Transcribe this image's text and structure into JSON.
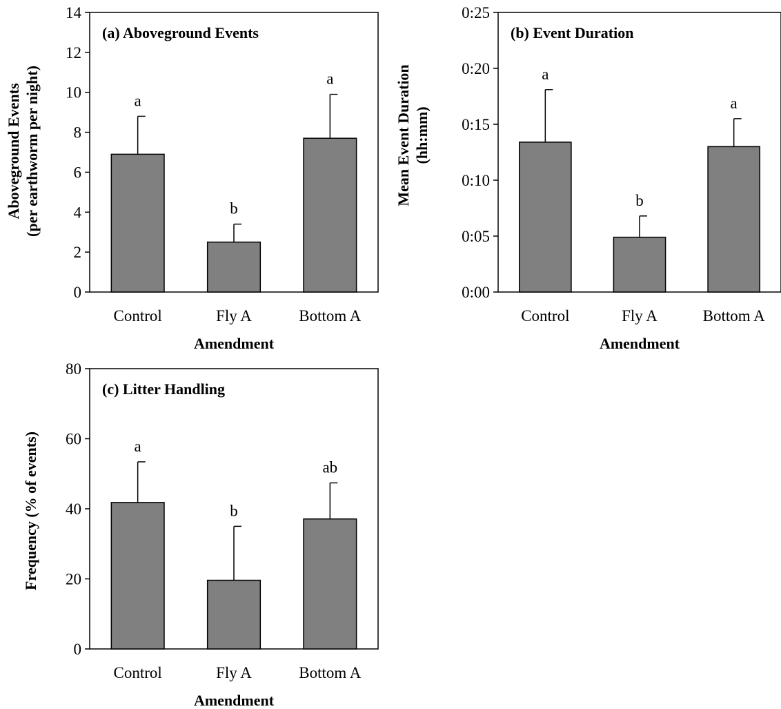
{
  "figure": {
    "colors": {
      "bar_fill": "#808080",
      "bar_stroke": "#000000",
      "axis": "#000000"
    }
  },
  "chart_data": [
    {
      "type": "bar",
      "title": "(a) Aboveground Events",
      "xlabel": "Amendment",
      "ylabel": "Aboveground Events",
      "ylabel_sub": "(per earthworm per night)",
      "categories": [
        "Control",
        "Fly A",
        "Bottom A"
      ],
      "values": [
        6.9,
        2.5,
        7.7
      ],
      "errors": [
        1.9,
        0.9,
        2.2
      ],
      "significance": [
        "a",
        "b",
        "a"
      ],
      "ylim": [
        0,
        14
      ],
      "yticks": [
        0,
        2,
        4,
        6,
        8,
        10,
        12,
        14
      ],
      "ytick_labels": [
        "0",
        "2",
        "4",
        "6",
        "8",
        "10",
        "12",
        "14"
      ],
      "grid": false
    },
    {
      "type": "bar",
      "title": "(b) Event Duration",
      "xlabel": "Amendment",
      "ylabel": "Mean Event Duration",
      "ylabel_sub": "(hh:mm)",
      "y_unit": "minutes",
      "categories": [
        "Control",
        "Fly A",
        "Bottom A"
      ],
      "values": [
        13.4,
        4.9,
        13.0
      ],
      "errors": [
        4.7,
        1.9,
        2.5
      ],
      "significance": [
        "a",
        "b",
        "a"
      ],
      "ylim": [
        0,
        25
      ],
      "yticks": [
        0,
        5,
        10,
        15,
        20,
        25
      ],
      "ytick_labels": [
        "0:00",
        "0:05",
        "0:10",
        "0:15",
        "0:20",
        "0:25"
      ],
      "grid": false
    },
    {
      "type": "bar",
      "title": "(c) Litter Handling",
      "xlabel": "Amendment",
      "ylabel": "Frequency (% of events)",
      "ylabel_sub": "",
      "categories": [
        "Control",
        "Fly A",
        "Bottom A"
      ],
      "values": [
        41.8,
        19.6,
        37.1
      ],
      "errors": [
        11.6,
        15.4,
        10.3
      ],
      "significance": [
        "a",
        "b",
        "ab"
      ],
      "ylim": [
        0,
        80
      ],
      "yticks": [
        0,
        20,
        40,
        60,
        80
      ],
      "ytick_labels": [
        "0",
        "20",
        "40",
        "60",
        "80"
      ],
      "grid": false
    }
  ]
}
